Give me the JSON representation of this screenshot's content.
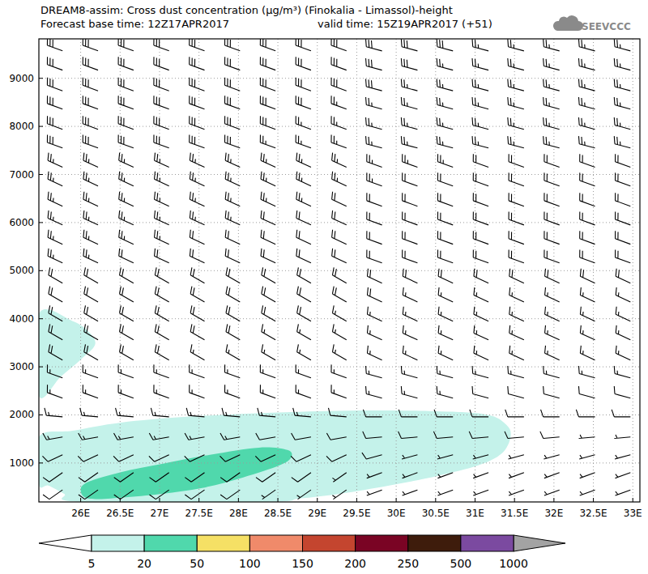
{
  "chart_data": {
    "type": "cross_section",
    "title": "DREAM8-assim: Cross dust concentration (μg/m³) (Finokalia - Limassol)-height",
    "subtitle": "Forecast base time: 12Z17APR2017",
    "annotations": [
      "valid time: 15Z19APR2017 (+51)",
      "SEEVCCC"
    ],
    "xlim": [
      25.47,
      33.09
    ],
    "ylim": [
      190,
      9820
    ],
    "xticks": [
      {
        "value": 26,
        "label": "26E"
      },
      {
        "value": 26.5,
        "label": "26.5E"
      },
      {
        "value": 27,
        "label": "27E"
      },
      {
        "value": 27.5,
        "label": "27.5E"
      },
      {
        "value": 28,
        "label": "28E"
      },
      {
        "value": 28.5,
        "label": "28.5E"
      },
      {
        "value": 29,
        "label": "29E"
      },
      {
        "value": 29.5,
        "label": "29.5E"
      },
      {
        "value": 30,
        "label": "30E"
      },
      {
        "value": 30.5,
        "label": "30.5E"
      },
      {
        "value": 31,
        "label": "31E"
      },
      {
        "value": 31.5,
        "label": "31.5E"
      },
      {
        "value": 32,
        "label": "32E"
      },
      {
        "value": 32.5,
        "label": "32.5E"
      },
      {
        "value": 33,
        "label": "33E"
      }
    ],
    "yticks": [
      1000,
      2000,
      3000,
      4000,
      5000,
      6000,
      7000,
      8000,
      9000
    ],
    "grid": true,
    "colorbar": {
      "levels": [
        5,
        20,
        50,
        100,
        150,
        200,
        250,
        500,
        1000
      ],
      "colors": [
        "#c4f2ea",
        "#50d8ac",
        "#f5e065",
        "#f08a6a",
        "#c4452f",
        "#7a0424",
        "#3e1c0c",
        "#7b4aa0"
      ],
      "under_color": "#ffffff",
      "over_color": "#a3a3a3"
    },
    "regions": [
      {
        "level": [
          5,
          20
        ],
        "points": [
          [
            25.47,
            4100
          ],
          [
            25.9,
            3950
          ],
          [
            26.12,
            3700
          ],
          [
            26.18,
            3450
          ],
          [
            26.0,
            3150
          ],
          [
            25.75,
            2800
          ],
          [
            25.47,
            2400
          ]
        ]
      },
      {
        "level": [
          5,
          20
        ],
        "points": [
          [
            25.47,
            1540
          ],
          [
            25.9,
            1670
          ],
          [
            26.51,
            1840
          ],
          [
            27.34,
            1960
          ],
          [
            28.36,
            2040
          ],
          [
            29.39,
            2090
          ],
          [
            30.42,
            2080
          ],
          [
            31.14,
            2010
          ],
          [
            31.4,
            1790
          ],
          [
            31.45,
            1540
          ],
          [
            31.34,
            1200
          ],
          [
            31.04,
            950
          ],
          [
            30.52,
            730
          ],
          [
            29.91,
            530
          ],
          [
            29.29,
            360
          ],
          [
            28.77,
            260
          ],
          [
            28.36,
            190
          ],
          [
            26.0,
            190
          ],
          [
            25.79,
            360
          ],
          [
            25.59,
            530
          ],
          [
            25.47,
            560
          ]
        ]
      },
      {
        "level": [
          20,
          50
        ],
        "points": [
          [
            26.0,
            440
          ],
          [
            26.1,
            610
          ],
          [
            26.51,
            810
          ],
          [
            27.03,
            980
          ],
          [
            27.64,
            1170
          ],
          [
            28.26,
            1320
          ],
          [
            28.62,
            1270
          ],
          [
            28.67,
            1120
          ],
          [
            28.52,
            950
          ],
          [
            28.06,
            700
          ],
          [
            27.54,
            480
          ],
          [
            27.03,
            360
          ],
          [
            26.51,
            280
          ],
          [
            26.1,
            260
          ]
        ]
      }
    ],
    "wind": {
      "x": [
        25.77,
        26.22,
        26.67,
        27.12,
        27.57,
        28.02,
        28.47,
        28.92,
        29.37,
        29.82,
        30.27,
        30.72,
        31.17,
        31.62,
        32.07,
        32.52,
        32.97
      ],
      "heights": [
        9570,
        9170,
        8740,
        8360,
        7940,
        7550,
        7150,
        6760,
        6340,
        5950,
        5550,
        5160,
        4740,
        4350,
        3950,
        3560,
        3140,
        2770,
        2350,
        1960,
        1540,
        1170,
        800,
        440
      ],
      "speed": [
        [
          30,
          30,
          30,
          30,
          30,
          30,
          30,
          30,
          30,
          30,
          30,
          30,
          25,
          25,
          25,
          25,
          25
        ],
        [
          30,
          30,
          30,
          30,
          30,
          30,
          30,
          30,
          30,
          30,
          30,
          25,
          25,
          25,
          25,
          25,
          25
        ],
        [
          30,
          30,
          30,
          30,
          30,
          30,
          30,
          30,
          30,
          30,
          25,
          25,
          25,
          25,
          25,
          25,
          25
        ],
        [
          30,
          30,
          30,
          30,
          30,
          30,
          30,
          30,
          25,
          25,
          25,
          25,
          25,
          25,
          25,
          25,
          25
        ],
        [
          30,
          30,
          30,
          30,
          30,
          30,
          30,
          25,
          25,
          25,
          25,
          25,
          25,
          25,
          25,
          25,
          25
        ],
        [
          30,
          30,
          30,
          30,
          30,
          30,
          25,
          25,
          25,
          25,
          25,
          25,
          25,
          25,
          25,
          25,
          25
        ],
        [
          25,
          25,
          25,
          25,
          25,
          25,
          25,
          25,
          25,
          25,
          25,
          25,
          20,
          20,
          20,
          20,
          20
        ],
        [
          25,
          25,
          25,
          25,
          25,
          25,
          25,
          25,
          25,
          25,
          20,
          20,
          20,
          20,
          20,
          20,
          20
        ],
        [
          25,
          25,
          25,
          25,
          25,
          25,
          25,
          25,
          20,
          20,
          20,
          20,
          20,
          20,
          20,
          20,
          20
        ],
        [
          25,
          25,
          25,
          25,
          25,
          25,
          20,
          20,
          20,
          20,
          20,
          20,
          20,
          20,
          20,
          20,
          20
        ],
        [
          25,
          25,
          25,
          25,
          20,
          20,
          20,
          20,
          20,
          20,
          20,
          20,
          20,
          20,
          20,
          20,
          20
        ],
        [
          25,
          25,
          20,
          20,
          20,
          20,
          20,
          20,
          20,
          20,
          20,
          20,
          20,
          20,
          20,
          20,
          20
        ],
        [
          20,
          20,
          20,
          20,
          20,
          20,
          20,
          20,
          20,
          20,
          20,
          20,
          20,
          20,
          20,
          20,
          20
        ],
        [
          20,
          20,
          20,
          20,
          20,
          20,
          20,
          20,
          20,
          20,
          15,
          15,
          15,
          15,
          15,
          15,
          15
        ],
        [
          20,
          20,
          20,
          20,
          20,
          20,
          20,
          20,
          15,
          15,
          15,
          15,
          15,
          15,
          15,
          15,
          15
        ],
        [
          20,
          20,
          20,
          20,
          20,
          20,
          15,
          15,
          15,
          15,
          15,
          15,
          15,
          15,
          15,
          15,
          15
        ],
        [
          20,
          20,
          20,
          20,
          15,
          15,
          15,
          15,
          15,
          15,
          15,
          15,
          15,
          15,
          15,
          15,
          15
        ],
        [
          15,
          15,
          15,
          15,
          15,
          15,
          15,
          15,
          15,
          15,
          15,
          15,
          15,
          15,
          15,
          15,
          15
        ],
        [
          15,
          15,
          15,
          15,
          15,
          15,
          15,
          15,
          15,
          15,
          15,
          15,
          10,
          10,
          10,
          10,
          10
        ],
        [
          15,
          15,
          15,
          15,
          15,
          15,
          15,
          15,
          10,
          10,
          10,
          10,
          10,
          10,
          10,
          10,
          10
        ],
        [
          15,
          15,
          15,
          15,
          15,
          15,
          10,
          10,
          10,
          10,
          10,
          10,
          10,
          10,
          10,
          5,
          5
        ],
        [
          10,
          10,
          10,
          10,
          10,
          10,
          10,
          10,
          10,
          10,
          5,
          5,
          5,
          5,
          5,
          5,
          5
        ],
        [
          10,
          10,
          10,
          10,
          10,
          10,
          10,
          10,
          5,
          5,
          5,
          5,
          5,
          5,
          5,
          5,
          5
        ],
        [
          10,
          10,
          10,
          10,
          10,
          10,
          5,
          5,
          5,
          5,
          5,
          5,
          5,
          5,
          5,
          5,
          5
        ]
      ],
      "direction": [
        [
          290,
          290,
          290,
          290,
          290,
          290,
          290,
          290,
          290,
          285,
          285,
          285,
          285,
          285,
          285,
          285,
          285
        ],
        [
          290,
          290,
          290,
          290,
          290,
          290,
          290,
          290,
          290,
          285,
          285,
          285,
          285,
          285,
          285,
          285,
          285
        ],
        [
          290,
          290,
          290,
          290,
          290,
          290,
          290,
          290,
          290,
          285,
          285,
          285,
          285,
          285,
          285,
          285,
          285
        ],
        [
          290,
          290,
          290,
          290,
          290,
          290,
          290,
          290,
          290,
          285,
          285,
          285,
          285,
          285,
          285,
          285,
          285
        ],
        [
          290,
          290,
          290,
          290,
          290,
          290,
          290,
          290,
          290,
          285,
          285,
          285,
          285,
          285,
          285,
          285,
          285
        ],
        [
          290,
          290,
          290,
          290,
          290,
          290,
          290,
          290,
          290,
          285,
          285,
          285,
          285,
          285,
          285,
          285,
          285
        ],
        [
          295,
          295,
          295,
          295,
          295,
          295,
          295,
          295,
          295,
          290,
          290,
          290,
          290,
          290,
          290,
          290,
          290
        ],
        [
          295,
          295,
          295,
          295,
          295,
          295,
          295,
          295,
          295,
          290,
          290,
          290,
          290,
          290,
          290,
          290,
          290
        ],
        [
          295,
          295,
          295,
          295,
          295,
          295,
          295,
          295,
          295,
          290,
          290,
          290,
          290,
          290,
          290,
          290,
          290
        ],
        [
          295,
          295,
          295,
          295,
          295,
          295,
          295,
          295,
          295,
          290,
          290,
          290,
          290,
          290,
          290,
          290,
          290
        ],
        [
          295,
          295,
          295,
          295,
          295,
          295,
          295,
          295,
          295,
          290,
          290,
          290,
          290,
          290,
          290,
          290,
          290
        ],
        [
          295,
          295,
          295,
          295,
          295,
          295,
          295,
          295,
          295,
          290,
          290,
          290,
          290,
          290,
          290,
          290,
          290
        ],
        [
          300,
          300,
          300,
          300,
          300,
          300,
          300,
          300,
          300,
          295,
          295,
          295,
          295,
          295,
          295,
          295,
          295
        ],
        [
          300,
          300,
          300,
          300,
          300,
          300,
          300,
          300,
          300,
          295,
          295,
          295,
          295,
          295,
          295,
          295,
          295
        ],
        [
          300,
          300,
          300,
          300,
          300,
          300,
          300,
          300,
          300,
          295,
          295,
          295,
          295,
          295,
          295,
          295,
          295
        ],
        [
          300,
          300,
          300,
          300,
          300,
          300,
          300,
          300,
          300,
          295,
          295,
          295,
          295,
          295,
          295,
          295,
          295
        ],
        [
          300,
          300,
          300,
          300,
          300,
          300,
          300,
          300,
          300,
          295,
          295,
          295,
          295,
          295,
          295,
          295,
          295
        ],
        [
          290,
          290,
          290,
          290,
          290,
          290,
          290,
          290,
          290,
          285,
          285,
          285,
          285,
          285,
          285,
          285,
          285
        ],
        [
          290,
          290,
          290,
          290,
          290,
          290,
          290,
          290,
          290,
          285,
          285,
          285,
          285,
          285,
          285,
          285,
          285
        ],
        [
          275,
          275,
          275,
          275,
          275,
          275,
          275,
          275,
          275,
          270,
          270,
          270,
          270,
          270,
          270,
          270,
          270
        ],
        [
          260,
          260,
          260,
          260,
          260,
          260,
          260,
          260,
          260,
          265,
          265,
          265,
          265,
          265,
          265,
          265,
          265
        ],
        [
          245,
          245,
          245,
          245,
          245,
          245,
          245,
          245,
          245,
          255,
          255,
          255,
          255,
          255,
          255,
          255,
          255
        ],
        [
          235,
          235,
          235,
          235,
          235,
          235,
          235,
          235,
          235,
          250,
          250,
          250,
          250,
          250,
          250,
          250,
          250
        ],
        [
          235,
          235,
          235,
          235,
          235,
          235,
          235,
          235,
          235,
          250,
          250,
          250,
          250,
          250,
          250,
          250,
          250
        ]
      ]
    }
  }
}
